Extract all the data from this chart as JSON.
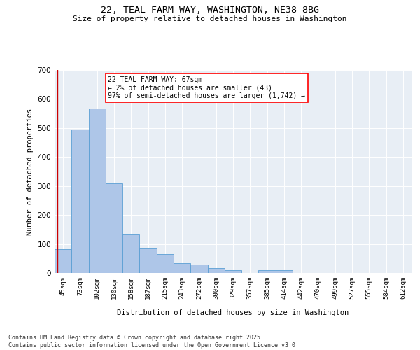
{
  "title_line1": "22, TEAL FARM WAY, WASHINGTON, NE38 8BG",
  "title_line2": "Size of property relative to detached houses in Washington",
  "xlabel": "Distribution of detached houses by size in Washington",
  "ylabel": "Number of detached properties",
  "bar_color": "#aec6e8",
  "bar_edge_color": "#5a9fd4",
  "marker_line_color": "#cc0000",
  "background_color": "#e8eef5",
  "categories": [
    "45sqm",
    "73sqm",
    "102sqm",
    "130sqm",
    "158sqm",
    "187sqm",
    "215sqm",
    "243sqm",
    "272sqm",
    "300sqm",
    "329sqm",
    "357sqm",
    "385sqm",
    "414sqm",
    "442sqm",
    "470sqm",
    "499sqm",
    "527sqm",
    "555sqm",
    "584sqm",
    "612sqm"
  ],
  "values": [
    83,
    494,
    568,
    308,
    135,
    85,
    64,
    33,
    28,
    17,
    10,
    0,
    10,
    10,
    0,
    0,
    0,
    0,
    0,
    0,
    0
  ],
  "marker_label_line1": "22 TEAL FARM WAY: 67sqm",
  "marker_label_line2": "← 2% of detached houses are smaller (43)",
  "marker_label_line3": "97% of semi-detached houses are larger (1,742) →",
  "ylim": [
    0,
    700
  ],
  "yticks": [
    0,
    100,
    200,
    300,
    400,
    500,
    600,
    700
  ],
  "footer_line1": "Contains HM Land Registry data © Crown copyright and database right 2025.",
  "footer_line2": "Contains public sector information licensed under the Open Government Licence v3.0."
}
